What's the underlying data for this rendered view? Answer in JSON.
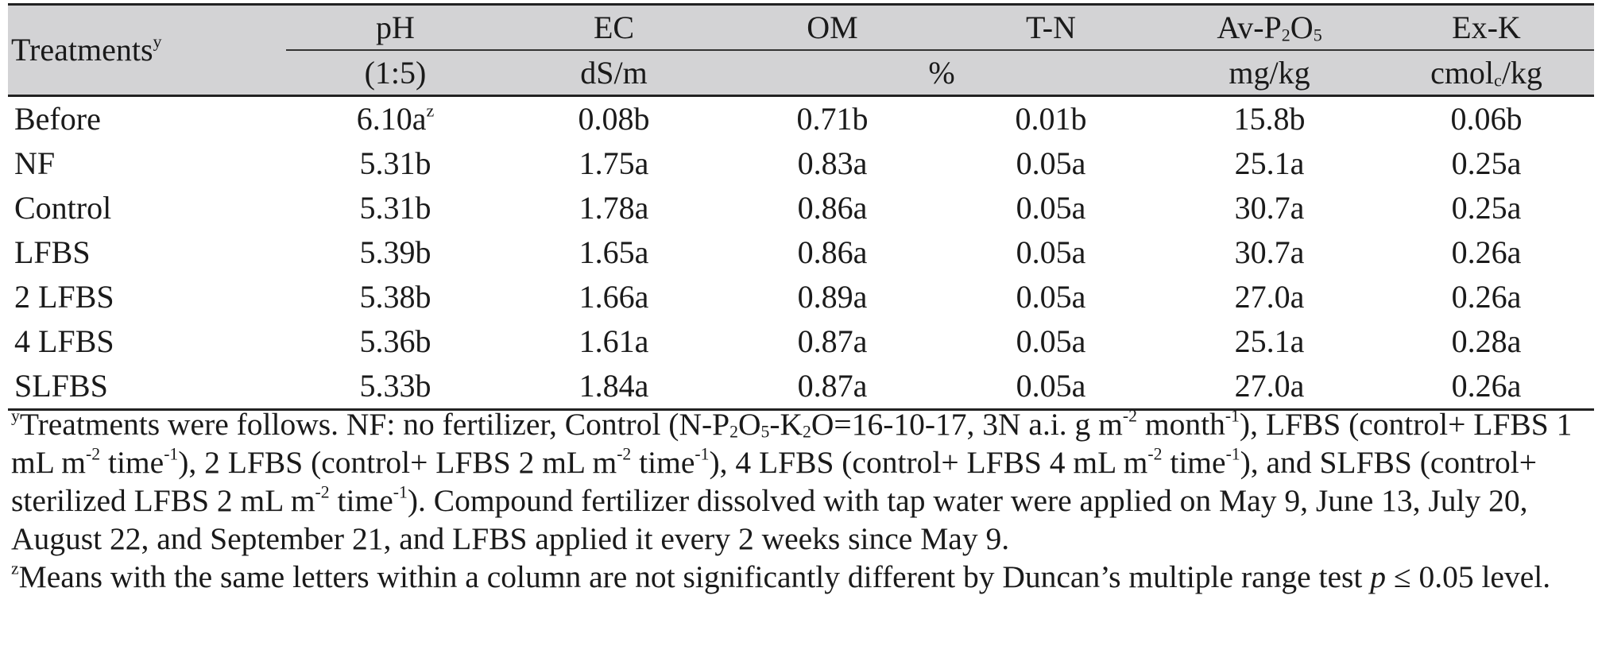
{
  "table": {
    "treatments_header": "Treatments",
    "treatments_header_sup": "y",
    "columns": [
      {
        "name": "pH",
        "unit": "(1:5)"
      },
      {
        "name": "EC",
        "unit": "dS/m"
      },
      {
        "name": "OM"
      },
      {
        "name": "T-N"
      },
      {
        "name_parts": [
          "Av-P",
          "2",
          "O",
          "5"
        ],
        "unit": "mg/kg"
      },
      {
        "name": "Ex-K",
        "unit_parts": [
          "cmol",
          "c",
          "/kg"
        ]
      }
    ],
    "percent_unit": "%",
    "rows": [
      {
        "treatment": "Before",
        "ph": "6.10a",
        "ph_sup": "z",
        "ec": "0.08b",
        "om": "0.71b",
        "tn": "0.01b",
        "avp": "15.8b",
        "exk": "0.06b"
      },
      {
        "treatment": "NF",
        "ph": "5.31b",
        "ec": "1.75a",
        "om": "0.83a",
        "tn": "0.05a",
        "avp": "25.1a",
        "exk": "0.25a"
      },
      {
        "treatment": "Control",
        "ph": "5.31b",
        "ec": "1.78a",
        "om": "0.86a",
        "tn": "0.05a",
        "avp": "30.7a",
        "exk": "0.25a"
      },
      {
        "treatment": "LFBS",
        "ph": "5.39b",
        "ec": "1.65a",
        "om": "0.86a",
        "tn": "0.05a",
        "avp": "30.7a",
        "exk": "0.26a"
      },
      {
        "treatment": "2 LFBS",
        "ph": "5.38b",
        "ec": "1.66a",
        "om": "0.89a",
        "tn": "0.05a",
        "avp": "27.0a",
        "exk": "0.26a"
      },
      {
        "treatment": "4 LFBS",
        "ph": "5.36b",
        "ec": "1.61a",
        "om": "0.87a",
        "tn": "0.05a",
        "avp": "25.1a",
        "exk": "0.28a"
      },
      {
        "treatment": "SLFBS",
        "ph": "5.33b",
        "ec": "1.84a",
        "om": "0.87a",
        "tn": "0.05a",
        "avp": "27.0a",
        "exk": "0.26a"
      }
    ]
  },
  "footnotes": {
    "y_mark": "y",
    "y_parts": [
      "Treatments were follows. NF: no fertilizer, Control (N-P",
      "2",
      "O",
      "5",
      "-K",
      "2",
      "O=16-10-17, 3N a.i. g m",
      "-2",
      " month",
      "-1",
      "), LFBS (control+ LFBS 1 mL m",
      "-2",
      " time",
      "-1",
      "), 2 LFBS (control+ LFBS 2 mL m",
      "-2",
      " time",
      "-1",
      "), 4 LFBS (control+ LFBS 4 mL m",
      "-2",
      " time",
      "-1",
      "), and SLFBS (control+ sterilized LFBS 2 mL m",
      "-2",
      " time",
      "-1",
      "). Compound fertilizer dissolved with tap water were applied on May 9, June 13, July 20, August 22, and September 21, and LFBS applied it every 2 weeks since May 9."
    ],
    "z_mark": "z",
    "z_text": "Means with the same letters within a column are not significantly different by Duncan’s multiple range test ",
    "z_p": "p",
    "z_text_after": " ≤ 0.05 level."
  }
}
